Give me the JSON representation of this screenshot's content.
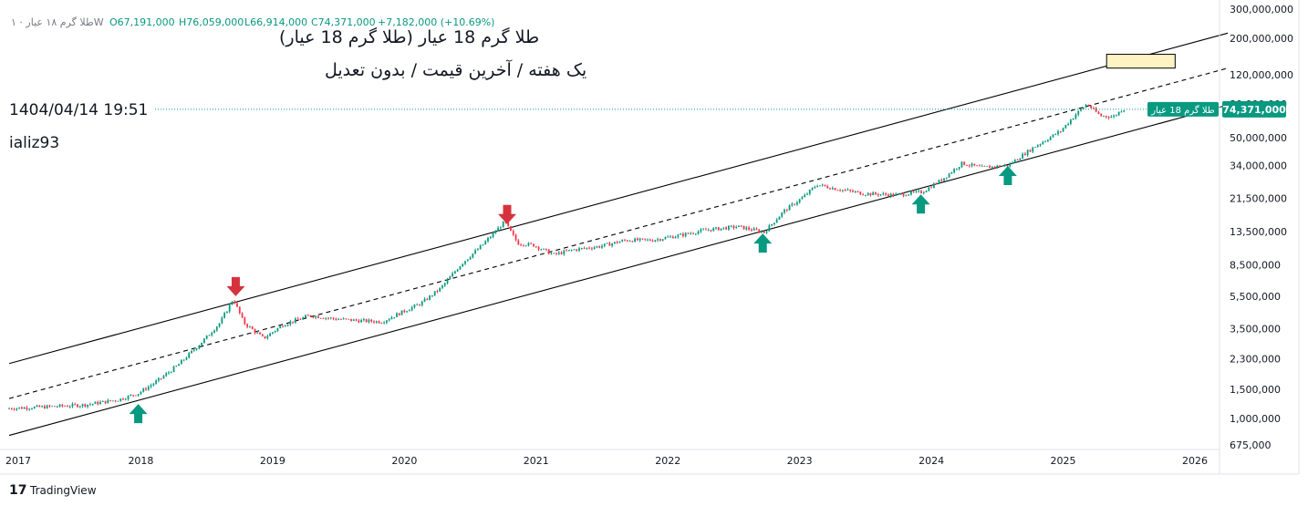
{
  "header": {
    "ohlc_prefix": "طلا گرم ۱۸ عیار · ۱W",
    "open": "O67,191,000",
    "high": "H76,059,000",
    "low": "L66,914,000",
    "close": "C74,371,000",
    "change": "+7,182,000 (+10.69%)"
  },
  "title_lines": [
    "طلا گرم 18 عیار (طلا گرم 18 عیار)",
    "یک هفته / آخرین قیمت / بدون تعدیل"
  ],
  "timestamp": "1404/04/14  19:51",
  "author": "ializ93",
  "branding": {
    "name": "TradingView"
  },
  "price_badge": {
    "symbol_label": "طلا گرم 18 عیار",
    "price_label": "74,371,000",
    "color": "#089981"
  },
  "colors": {
    "up": "#089981",
    "down": "#f23645",
    "channel": "#000000",
    "arrow_up": "#089981",
    "arrow_down": "#d6323e",
    "highlight": "#fff3c4"
  },
  "chart_data": {
    "type": "candlestick",
    "scale": "log",
    "ylim": [
      650000,
      310000000
    ],
    "xlim": [
      2017.0,
      2026.3
    ],
    "y_ticks": [
      1000000,
      1500000,
      2300000,
      3500000,
      5500000,
      8500000,
      13500000,
      21500000,
      34000000,
      50000000,
      80000000,
      120000000,
      200000000,
      300000000
    ],
    "y_tick_labels": [
      "1,000,000",
      "1,500,000",
      "2,300,000",
      "3,500,000",
      "5,500,000",
      "8,500,000",
      "13,500,000",
      "21,500,000",
      "34,000,000",
      "50,000,000",
      "80,000,000",
      "120,000,000",
      "200,000,000",
      "300,000,000"
    ],
    "y_tick_bottom": "675,000",
    "x_ticks": [
      2017,
      2018,
      2019,
      2020,
      2021,
      2022,
      2023,
      2024,
      2025,
      2026
    ],
    "x_tick_labels": [
      "2017",
      "2018",
      "2019",
      "2020",
      "2021",
      "2022",
      "2023",
      "2024",
      "2025",
      "2026"
    ],
    "last_price": 74371000,
    "series": [
      {
        "t": 2017.0,
        "p": 1150000
      },
      {
        "t": 2017.35,
        "p": 1180000
      },
      {
        "t": 2017.6,
        "p": 1210000
      },
      {
        "t": 2017.85,
        "p": 1300000
      },
      {
        "t": 2018.0,
        "p": 1420000
      },
      {
        "t": 2018.15,
        "p": 1700000
      },
      {
        "t": 2018.3,
        "p": 2100000
      },
      {
        "t": 2018.5,
        "p": 3000000
      },
      {
        "t": 2018.62,
        "p": 3800000
      },
      {
        "t": 2018.72,
        "p": 5300000
      },
      {
        "t": 2018.8,
        "p": 3800000
      },
      {
        "t": 2018.95,
        "p": 3050000
      },
      {
        "t": 2019.1,
        "p": 3700000
      },
      {
        "t": 2019.3,
        "p": 4200000
      },
      {
        "t": 2019.5,
        "p": 4000000
      },
      {
        "t": 2019.7,
        "p": 3900000
      },
      {
        "t": 2019.85,
        "p": 3850000
      },
      {
        "t": 2020.0,
        "p": 4400000
      },
      {
        "t": 2020.15,
        "p": 5000000
      },
      {
        "t": 2020.3,
        "p": 6200000
      },
      {
        "t": 2020.45,
        "p": 8600000
      },
      {
        "t": 2020.6,
        "p": 11000000
      },
      {
        "t": 2020.78,
        "p": 15500000
      },
      {
        "t": 2020.88,
        "p": 11500000
      },
      {
        "t": 2021.0,
        "p": 11200000
      },
      {
        "t": 2021.15,
        "p": 9800000
      },
      {
        "t": 2021.3,
        "p": 10500000
      },
      {
        "t": 2021.5,
        "p": 11000000
      },
      {
        "t": 2021.7,
        "p": 12000000
      },
      {
        "t": 2021.9,
        "p": 12000000
      },
      {
        "t": 2022.1,
        "p": 12800000
      },
      {
        "t": 2022.3,
        "p": 13800000
      },
      {
        "t": 2022.55,
        "p": 14500000
      },
      {
        "t": 2022.75,
        "p": 13400000
      },
      {
        "t": 2022.9,
        "p": 18000000
      },
      {
        "t": 2023.05,
        "p": 22000000
      },
      {
        "t": 2023.15,
        "p": 26000000
      },
      {
        "t": 2023.3,
        "p": 24500000
      },
      {
        "t": 2023.5,
        "p": 23000000
      },
      {
        "t": 2023.75,
        "p": 22500000
      },
      {
        "t": 2023.95,
        "p": 23500000
      },
      {
        "t": 2024.1,
        "p": 28000000
      },
      {
        "t": 2024.25,
        "p": 35000000
      },
      {
        "t": 2024.4,
        "p": 33000000
      },
      {
        "t": 2024.6,
        "p": 34000000
      },
      {
        "t": 2024.8,
        "p": 44000000
      },
      {
        "t": 2025.0,
        "p": 55000000
      },
      {
        "t": 2025.12,
        "p": 70000000
      },
      {
        "t": 2025.2,
        "p": 80000000
      },
      {
        "t": 2025.3,
        "p": 68000000
      },
      {
        "t": 2025.4,
        "p": 67000000
      },
      {
        "t": 2025.47,
        "p": 74371000
      }
    ],
    "channel": {
      "upper": [
        [
          2017.0,
          2150000
        ],
        [
          2026.25,
          215000000
        ]
      ],
      "mid": [
        [
          2017.0,
          1320000
        ],
        [
          2026.25,
          132000000
        ]
      ],
      "lower": [
        [
          2017.0,
          790000
        ],
        [
          2026.25,
          79000000
        ]
      ]
    },
    "arrows": [
      {
        "dir": "up",
        "t": 2017.98,
        "p": 1050000
      },
      {
        "dir": "down",
        "t": 2018.72,
        "p": 6400000
      },
      {
        "dir": "down",
        "t": 2020.78,
        "p": 17500000
      },
      {
        "dir": "up",
        "t": 2022.72,
        "p": 11300000
      },
      {
        "dir": "up",
        "t": 2023.92,
        "p": 19500000
      },
      {
        "dir": "up",
        "t": 2024.58,
        "p": 29000000
      }
    ],
    "highlight_box": {
      "t0": 2025.33,
      "t1": 2025.85,
      "p0": 132000000,
      "p1": 160000000
    }
  }
}
